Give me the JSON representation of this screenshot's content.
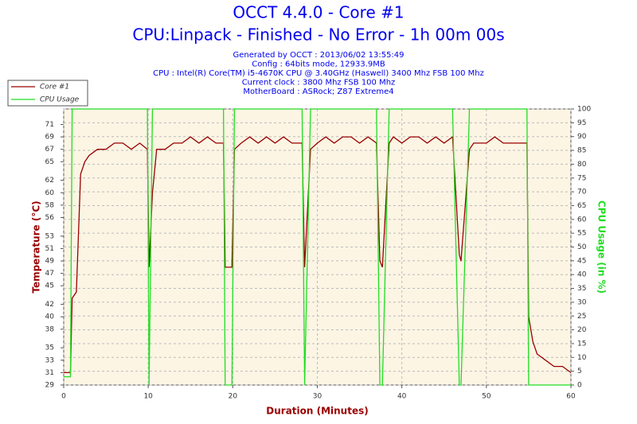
{
  "chart_data": {
    "type": "line",
    "title": "OCCT 4.4.0 - Core #1",
    "subtitle": "CPU:Linpack - Finished - No Error - 1h 00m 00s",
    "info": [
      "Generated by OCCT : 2013/06/02 13:55:49",
      "Config : 64bits mode, 12933.9MB",
      "CPU : Intel(R) Core(TM) i5-4670K CPU @ 3.40GHz (Haswell) 3400 Mhz FSB 100 Mhz",
      "Current clock : 3800 Mhz FSB 100 Mhz",
      "MotherBoard : ASRock; Z87 Extreme4"
    ],
    "xlabel": "Duration (Minutes)",
    "ylabel": "Temperature (°C)",
    "y2label": "CPU Usage (in %)",
    "x": [
      0,
      0.8,
      1,
      1.5,
      2,
      2.5,
      3,
      4,
      5,
      6,
      7,
      8,
      9,
      9.9,
      10.1,
      10.5,
      11,
      12,
      13,
      14,
      15,
      16,
      17,
      18,
      18.9,
      19.1,
      19.9,
      20.2,
      21,
      22,
      23,
      24,
      25,
      26,
      27,
      28.2,
      28.5,
      29.2,
      30,
      31,
      32,
      33,
      34,
      35,
      36,
      37,
      37.4,
      37.7,
      38.5,
      39,
      40,
      41,
      42,
      43,
      44,
      45,
      46,
      46.8,
      47,
      48,
      48.5,
      49,
      50,
      51,
      52,
      53,
      54,
      54.8,
      55,
      55.5,
      56,
      57,
      58,
      59,
      60
    ],
    "series": [
      {
        "name": "Core #1",
        "color": "#990000",
        "values": [
          31,
          31,
          43,
          44,
          63,
          65,
          66,
          67,
          67,
          68,
          68,
          67,
          68,
          67,
          48,
          60,
          67,
          67,
          68,
          68,
          69,
          68,
          69,
          68,
          68,
          48,
          48,
          67,
          68,
          69,
          68,
          69,
          68,
          69,
          68,
          68,
          48,
          67,
          68,
          69,
          68,
          69,
          69,
          68,
          69,
          68,
          49,
          48,
          68,
          69,
          68,
          69,
          69,
          68,
          69,
          68,
          69,
          50,
          49,
          67,
          68,
          68,
          68,
          69,
          68,
          68,
          68,
          68,
          40,
          36,
          34,
          33,
          32,
          32,
          31
        ]
      },
      {
        "name": "CPU Usage",
        "color": "#22dd22",
        "axis": "y2",
        "values": [
          3,
          3,
          100,
          100,
          100,
          100,
          100,
          100,
          100,
          100,
          100,
          100,
          100,
          100,
          0,
          100,
          100,
          100,
          100,
          100,
          100,
          100,
          100,
          100,
          100,
          0,
          0,
          100,
          100,
          100,
          100,
          100,
          100,
          100,
          100,
          100,
          0,
          100,
          100,
          100,
          100,
          100,
          100,
          100,
          100,
          100,
          0,
          0,
          100,
          100,
          100,
          100,
          100,
          100,
          100,
          100,
          100,
          0,
          0,
          100,
          100,
          100,
          100,
          100,
          100,
          100,
          100,
          100,
          0,
          0,
          0,
          0,
          0,
          0,
          0
        ]
      }
    ],
    "xlim": [
      0,
      60
    ],
    "xticks": [
      0,
      10,
      20,
      30,
      40,
      50,
      60
    ],
    "ylim": [
      29,
      73.5
    ],
    "yticks": [
      29,
      31,
      33,
      35,
      38,
      40,
      42,
      45,
      47,
      49,
      51,
      53,
      56,
      58,
      60,
      62,
      65,
      67,
      69,
      71
    ],
    "y2lim": [
      0,
      100
    ],
    "y2ticks": [
      0,
      5,
      10,
      15,
      20,
      25,
      30,
      35,
      40,
      45,
      50,
      55,
      60,
      65,
      70,
      75,
      80,
      85,
      90,
      95,
      100
    ],
    "grid": true
  }
}
